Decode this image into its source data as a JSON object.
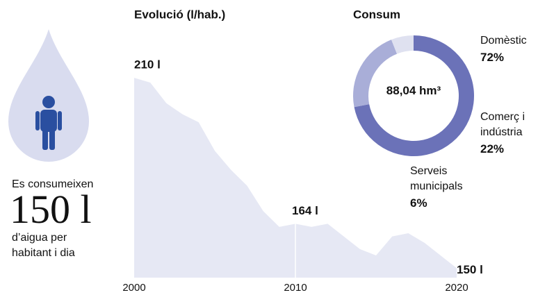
{
  "panel": {
    "lead": "Es consumeixen",
    "big": "150 l",
    "rest": "d’aigua per habitant i dia"
  },
  "chart_data": [
    {
      "type": "area",
      "title": "Evolució (l/hab.)",
      "x": [
        2000,
        2001,
        2002,
        2003,
        2004,
        2005,
        2006,
        2007,
        2008,
        2009,
        2010,
        2011,
        2012,
        2013,
        2014,
        2015,
        2016,
        2017,
        2018,
        2019,
        2020
      ],
      "values": [
        210,
        208.5,
        202,
        198.5,
        196,
        187,
        181,
        176,
        168,
        163,
        164,
        163,
        164,
        160,
        156,
        154,
        160,
        161,
        158,
        154,
        150
      ],
      "value_labels": [
        "210 l",
        null,
        null,
        null,
        null,
        null,
        null,
        null,
        null,
        null,
        "164 l",
        null,
        null,
        null,
        null,
        null,
        null,
        null,
        null,
        null,
        "150 l"
      ],
      "xlim": [
        2000,
        2020
      ],
      "xticks": [
        2000,
        2010,
        2020
      ],
      "ylim": [
        147,
        212
      ],
      "color": "#e6e8f4"
    },
    {
      "type": "donut",
      "title": "Consum",
      "center_label": "88,04 hm³",
      "categories": [
        "Domèstic",
        "Comerç i indústria",
        "Serveis municipals"
      ],
      "values": [
        72,
        22,
        6
      ],
      "value_labels": [
        "72%",
        "22%",
        "6%"
      ],
      "colors": [
        "#6b72b8",
        "#a9aed8",
        "#dfe1f0"
      ]
    }
  ]
}
